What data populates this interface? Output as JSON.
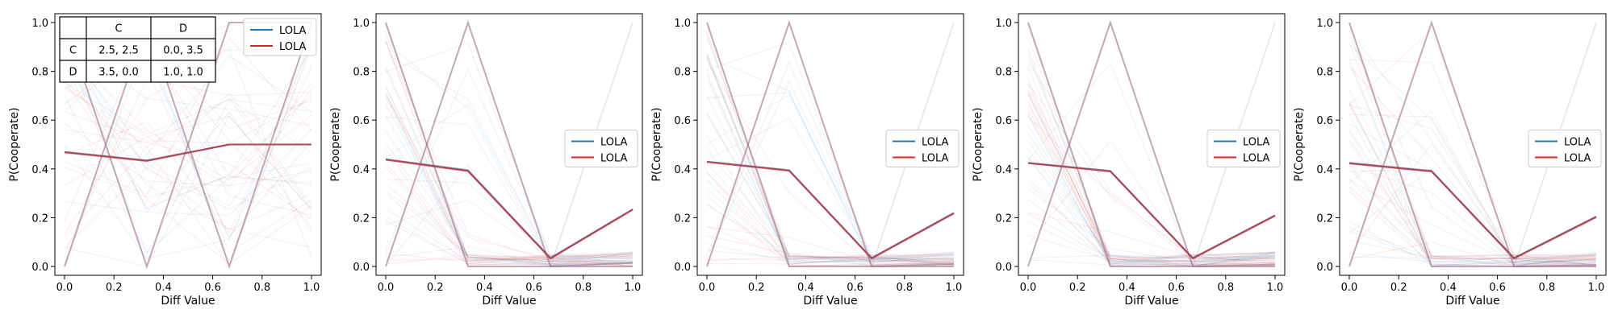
{
  "figure": {
    "payoff_table": {
      "col_headers": [
        "C",
        "D"
      ],
      "row_headers": [
        "C",
        "D"
      ],
      "cells": [
        [
          "2.5, 2.5",
          "0.0, 3.5"
        ],
        [
          "3.5, 0.0",
          "1.0, 1.0"
        ]
      ]
    }
  },
  "chart_data": [
    {
      "type": "line",
      "title": "",
      "xlabel": "Diff Value",
      "ylabel": "P(Cooperate)",
      "xlim": [
        0,
        1
      ],
      "ylim": [
        0,
        1
      ],
      "xticks": [
        "0.0",
        "0.2",
        "0.4",
        "0.6",
        "0.8",
        "1.0"
      ],
      "yticks": [
        "0.0",
        "0.2",
        "0.4",
        "0.6",
        "0.8",
        "1.0"
      ],
      "legend": {
        "placement": "top-right",
        "entries": [
          "LOLA",
          "LOLA"
        ]
      },
      "has_payoff_table": true,
      "colors": {
        "blue": "#1f77b4",
        "red": "#d62728",
        "mean": "#a84a5a"
      },
      "x": [
        0.0,
        0.333,
        0.667,
        1.0
      ],
      "series": [
        {
          "name": "LOLA",
          "color": "blue",
          "values": [
            0.47,
            0.435,
            0.5,
            0.5
          ]
        },
        {
          "name": "LOLA",
          "color": "red",
          "values": [
            0.467,
            0.432,
            0.5,
            0.5
          ]
        }
      ],
      "extreme_trajectory": [
        0.0,
        1.0,
        0.0,
        1.0
      ],
      "extreme_trajectory_2": [
        1.0,
        0.0,
        1.0,
        1.0
      ]
    },
    {
      "type": "line",
      "title": "",
      "xlabel": "Diff Value",
      "ylabel": "P(Cooperate)",
      "xlim": [
        0,
        1
      ],
      "ylim": [
        0,
        1
      ],
      "xticks": [
        "0.0",
        "0.2",
        "0.4",
        "0.6",
        "0.8",
        "1.0"
      ],
      "yticks": [
        "0.0",
        "0.2",
        "0.4",
        "0.6",
        "0.8",
        "1.0"
      ],
      "legend": {
        "placement": "center-right",
        "entries": [
          "LOLA",
          "LOLA"
        ]
      },
      "has_payoff_table": false,
      "colors": {
        "blue": "#1f77b4",
        "red": "#d62728",
        "mean": "#a84a5a"
      },
      "x": [
        0.0,
        0.333,
        0.667,
        1.0
      ],
      "series": [
        {
          "name": "LOLA",
          "color": "blue",
          "values": [
            0.44,
            0.395,
            0.035,
            0.235
          ]
        },
        {
          "name": "LOLA",
          "color": "red",
          "values": [
            0.437,
            0.39,
            0.032,
            0.232
          ]
        }
      ],
      "extreme_trajectory": [
        0.0,
        1.0,
        0.0,
        0.0
      ],
      "extreme_trajectory_2": [
        1.0,
        0.0,
        0.0,
        0.015
      ]
    },
    {
      "type": "line",
      "title": "",
      "xlabel": "Diff Value",
      "ylabel": "P(Cooperate)",
      "xlim": [
        0,
        1
      ],
      "ylim": [
        0,
        1
      ],
      "xticks": [
        "0.0",
        "0.2",
        "0.4",
        "0.6",
        "0.8",
        "1.0"
      ],
      "yticks": [
        "0.0",
        "0.2",
        "0.4",
        "0.6",
        "0.8",
        "1.0"
      ],
      "legend": {
        "placement": "center-right",
        "entries": [
          "LOLA",
          "LOLA"
        ]
      },
      "has_payoff_table": false,
      "colors": {
        "blue": "#1f77b4",
        "red": "#d62728",
        "mean": "#a84a5a"
      },
      "x": [
        0.0,
        0.333,
        0.667,
        1.0
      ],
      "series": [
        {
          "name": "LOLA",
          "color": "blue",
          "values": [
            0.43,
            0.395,
            0.035,
            0.22
          ]
        },
        {
          "name": "LOLA",
          "color": "red",
          "values": [
            0.428,
            0.392,
            0.032,
            0.217
          ]
        }
      ],
      "extreme_trajectory": [
        0.0,
        1.0,
        0.0,
        0.0
      ],
      "extreme_trajectory_2": [
        1.0,
        0.0,
        0.0,
        0.01
      ]
    },
    {
      "type": "line",
      "title": "",
      "xlabel": "Diff Value",
      "ylabel": "P(Cooperate)",
      "xlim": [
        0,
        1
      ],
      "ylim": [
        0,
        1
      ],
      "xticks": [
        "0.0",
        "0.2",
        "0.4",
        "0.6",
        "0.8",
        "1.0"
      ],
      "yticks": [
        "0.0",
        "0.2",
        "0.4",
        "0.6",
        "0.8",
        "1.0"
      ],
      "legend": {
        "placement": "center-right",
        "entries": [
          "LOLA",
          "LOLA"
        ]
      },
      "has_payoff_table": false,
      "colors": {
        "blue": "#1f77b4",
        "red": "#d62728",
        "mean": "#a84a5a"
      },
      "x": [
        0.0,
        0.333,
        0.667,
        1.0
      ],
      "series": [
        {
          "name": "LOLA",
          "color": "blue",
          "values": [
            0.425,
            0.392,
            0.035,
            0.21
          ]
        },
        {
          "name": "LOLA",
          "color": "red",
          "values": [
            0.423,
            0.389,
            0.032,
            0.207
          ]
        }
      ],
      "extreme_trajectory": [
        0.0,
        1.0,
        0.0,
        0.0
      ],
      "extreme_trajectory_2": [
        1.0,
        0.0,
        0.0,
        0.008
      ]
    },
    {
      "type": "line",
      "title": "",
      "xlabel": "Diff Value",
      "ylabel": "P(Cooperate)",
      "xlim": [
        0,
        1
      ],
      "ylim": [
        0,
        1
      ],
      "xticks": [
        "0.0",
        "0.2",
        "0.4",
        "0.6",
        "0.8",
        "1.0"
      ],
      "yticks": [
        "0.0",
        "0.2",
        "0.4",
        "0.6",
        "0.8",
        "1.0"
      ],
      "legend": {
        "placement": "center-right",
        "entries": [
          "LOLA",
          "LOLA"
        ]
      },
      "has_payoff_table": false,
      "colors": {
        "blue": "#1f77b4",
        "red": "#d62728",
        "mean": "#a84a5a"
      },
      "x": [
        0.0,
        0.333,
        0.667,
        1.0
      ],
      "series": [
        {
          "name": "LOLA",
          "color": "blue",
          "values": [
            0.425,
            0.392,
            0.035,
            0.205
          ]
        },
        {
          "name": "LOLA",
          "color": "red",
          "values": [
            0.422,
            0.389,
            0.032,
            0.202
          ]
        }
      ],
      "extreme_trajectory": [
        0.0,
        1.0,
        0.0,
        0.0
      ],
      "extreme_trajectory_2": [
        1.0,
        0.0,
        0.0,
        0.006
      ]
    }
  ]
}
